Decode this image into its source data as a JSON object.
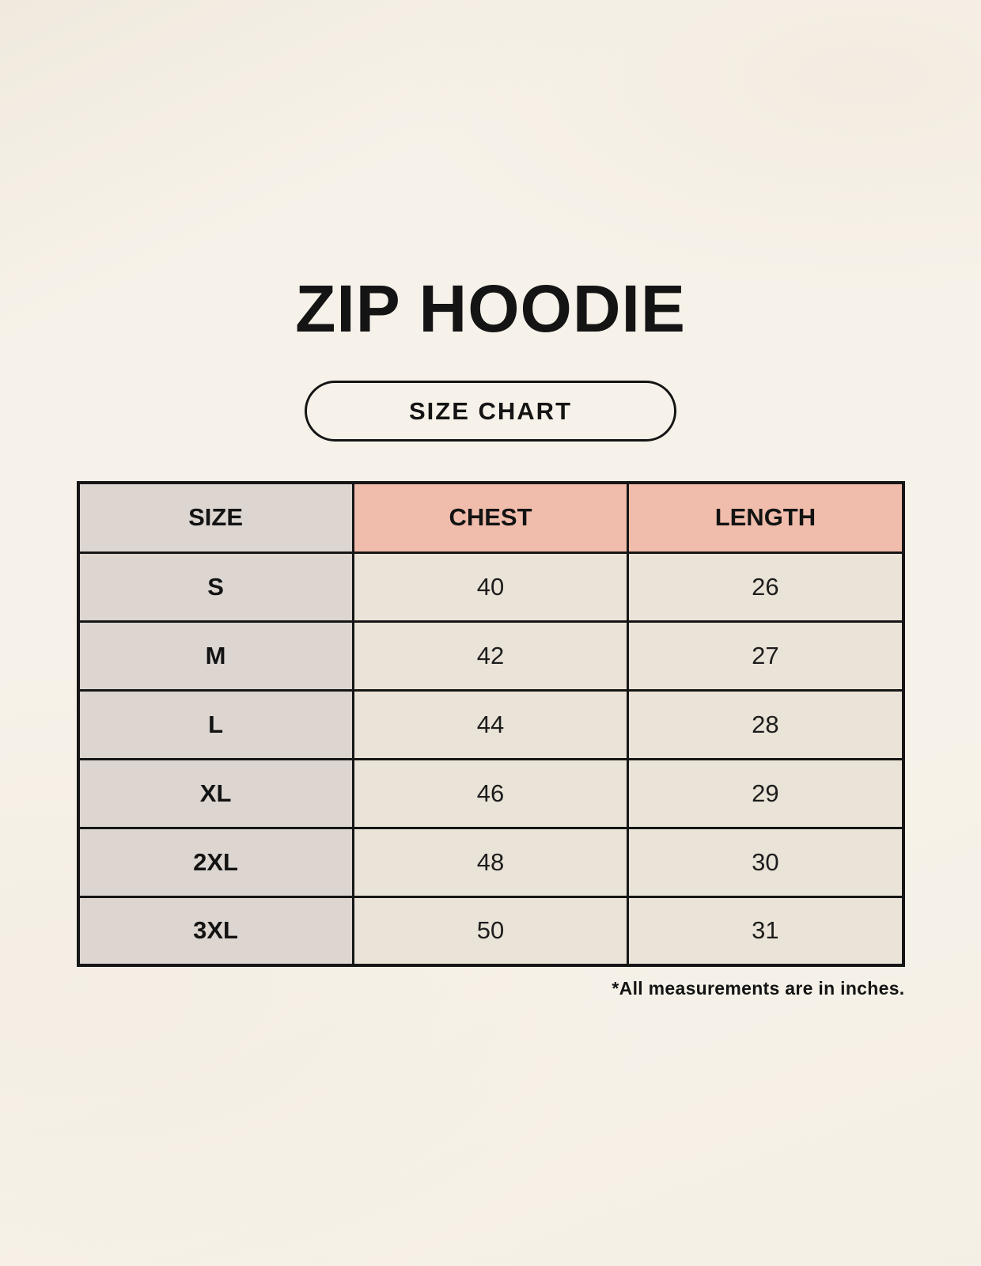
{
  "page": {
    "title": "ZIP HOODIE",
    "size_chart_button": "SIZE CHART",
    "footnote": "*All measurements are in inches."
  },
  "table": {
    "headers": [
      "SIZE",
      "CHEST",
      "LENGTH"
    ],
    "rows": [
      {
        "size": "S",
        "chest": "40",
        "length": "26"
      },
      {
        "size": "M",
        "chest": "42",
        "length": "27"
      },
      {
        "size": "L",
        "chest": "44",
        "length": "28"
      },
      {
        "size": "XL",
        "chest": "46",
        "length": "29"
      },
      {
        "size": "2XL",
        "chest": "48",
        "length": "30"
      },
      {
        "size": "3XL",
        "chest": "50",
        "length": "31"
      }
    ]
  },
  "colors": {
    "background": "#F7F2E9",
    "header_accent_pink": "#F0BCAB",
    "size_column_gray": "#DCD5D0",
    "data_cell_cream": "#EAE3D7",
    "border": "#161616",
    "text": "#141414"
  }
}
